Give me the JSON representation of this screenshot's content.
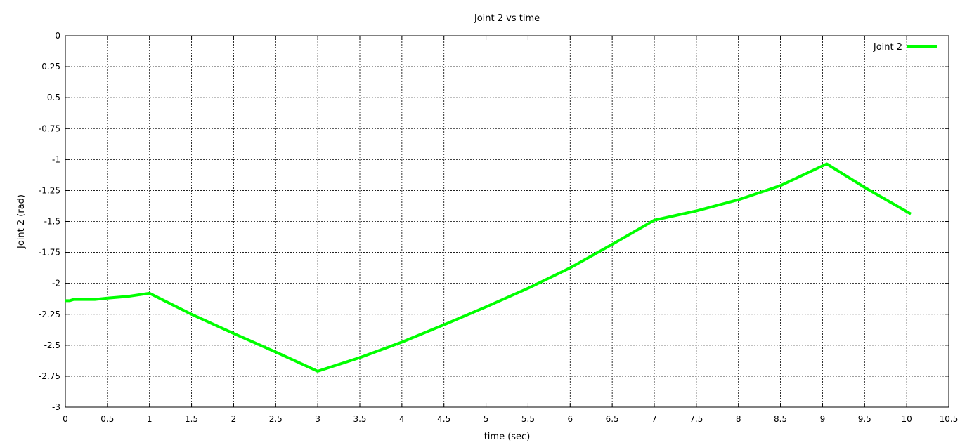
{
  "chart_data": {
    "type": "line",
    "title": "Joint 2 vs time",
    "xlabel": "time (sec)",
    "ylabel": "Joint 2 (rad)",
    "xlim": [
      0,
      10.5
    ],
    "ylim": [
      -3,
      0
    ],
    "x_ticks": [
      0,
      0.5,
      1,
      1.5,
      2,
      2.5,
      3,
      3.5,
      4,
      4.5,
      5,
      5.5,
      6,
      6.5,
      7,
      7.5,
      8,
      8.5,
      9,
      9.5,
      10,
      10.5
    ],
    "x_tick_labels": [
      "0",
      "0.5",
      "1",
      "1.5",
      "2",
      "2.5",
      "3",
      "3.5",
      "4",
      "4.5",
      "5",
      "5.5",
      "6",
      "6.5",
      "7",
      "7.5",
      "8",
      "8.5",
      "9",
      "9.5",
      "10",
      "10.5"
    ],
    "y_ticks": [
      0,
      -0.25,
      -0.5,
      -0.75,
      -1,
      -1.25,
      -1.5,
      -1.75,
      -2,
      -2.25,
      -2.5,
      -2.75,
      -3
    ],
    "y_tick_labels": [
      "0",
      "-0.25",
      "-0.5",
      "-0.75",
      "-1",
      "-1.25",
      "-1.5",
      "-1.75",
      "-2",
      "-2.25",
      "-2.5",
      "-2.75",
      "-3"
    ],
    "grid": true,
    "legend_position": "top-right",
    "series": [
      {
        "name": "Joint 2",
        "color": "#00ff00",
        "x": [
          0,
          0.05,
          0.1,
          0.35,
          0.5,
          0.75,
          1,
          1.5,
          2,
          2.5,
          3,
          3.5,
          4,
          4.5,
          5,
          5.5,
          6,
          6.5,
          7,
          7.5,
          8,
          8.5,
          9.05,
          9.5,
          10.05
        ],
        "y": [
          -2.14,
          -2.14,
          -2.13,
          -2.13,
          -2.12,
          -2.105,
          -2.08,
          -2.25,
          -2.405,
          -2.555,
          -2.71,
          -2.6,
          -2.475,
          -2.335,
          -2.19,
          -2.04,
          -1.875,
          -1.685,
          -1.49,
          -1.415,
          -1.325,
          -1.21,
          -1.035,
          -1.225,
          -1.44
        ]
      }
    ]
  }
}
